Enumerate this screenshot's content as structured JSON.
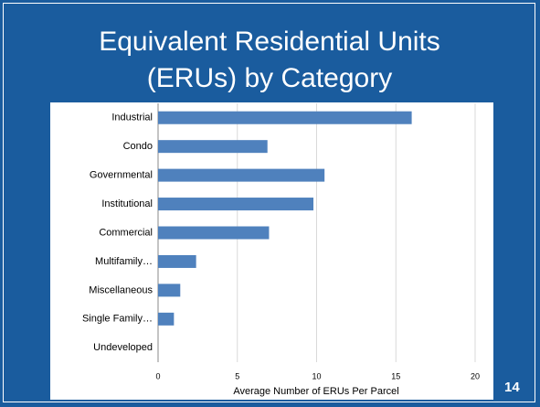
{
  "chart_data": {
    "type": "bar",
    "orientation": "horizontal",
    "title": "Equivalent Residential Units (ERUs) by Category",
    "xlabel": "Average Number of ERUs Per Parcel",
    "categories": [
      "Industrial",
      "Condo",
      "Governmental",
      "Institutional",
      "Commercial",
      "Multifamily…",
      "Miscellaneous",
      "Single Family…",
      "Undeveloped"
    ],
    "values": [
      16,
      6.9,
      10.5,
      9.8,
      7.0,
      2.4,
      1.4,
      1.0,
      0
    ],
    "color": "#4f81bd",
    "xlim": [
      0,
      20
    ],
    "xticks": [
      0,
      5,
      10,
      15,
      20
    ],
    "grid": true
  },
  "slide_number": "14"
}
